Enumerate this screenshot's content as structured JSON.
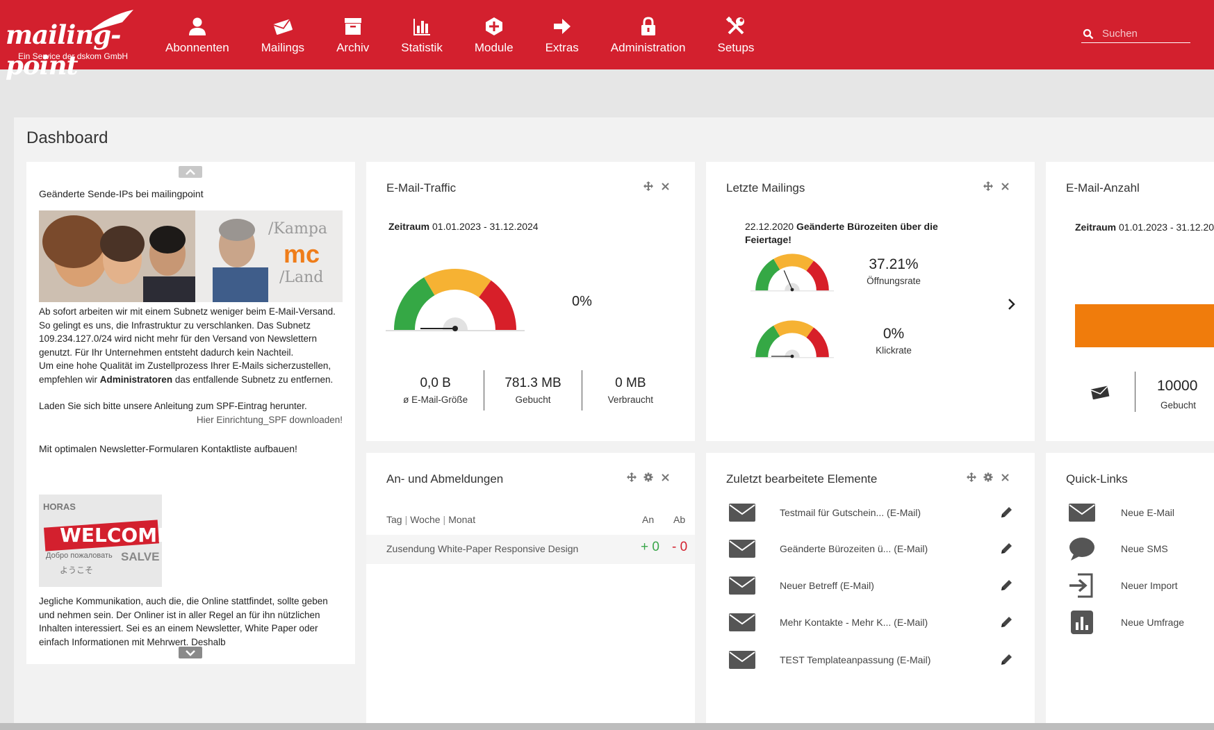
{
  "brand": {
    "logo_text": "mailing-point",
    "tagline": "Ein Service der dskom GmbH",
    "primary": "#d3202e"
  },
  "nav": [
    {
      "label": "Abonnenten",
      "icon": "user-icon"
    },
    {
      "label": "Mailings",
      "icon": "envelope-open-icon"
    },
    {
      "label": "Archiv",
      "icon": "archive-icon"
    },
    {
      "label": "Statistik",
      "icon": "bar-chart-icon"
    },
    {
      "label": "Module",
      "icon": "plus-hexagon-icon"
    },
    {
      "label": "Extras",
      "icon": "arrow-right-icon"
    },
    {
      "label": "Administration",
      "icon": "lock-icon"
    },
    {
      "label": "Setups",
      "icon": "tools-icon"
    }
  ],
  "search": {
    "placeholder": "Suchen",
    "value": ""
  },
  "page": {
    "title": "Dashboard"
  },
  "news": {
    "item1": {
      "title": "Geänderte Sende-IPs bei mailingpoint",
      "image_text": [
        "/Kampa",
        "mc",
        "/Land"
      ],
      "p1": "Ab sofort arbeiten wir mit einem Subnetz weniger beim E-Mail-Versand. So gelingt es uns, die Infrastruktur zu verschlanken. Das Subnetz 109.234.127.0/24 wird nicht mehr für den Versand von Newslettern genutzt. Für Ihr Unternehmen entsteht dadurch kein Nachteil.",
      "p2_pre": "Um eine hohe Qualität im Zustellprozess Ihrer E-Mails sicherzustellen, empfehlen wir ",
      "p2_bold": "Administratoren",
      "p2_post": " das entfallende Subnetz zu entfernen.",
      "p3": "Laden Sie sich bitte unsere Anleitung zum SPF-Eintrag herunter.",
      "download": "Hier Einrichtung_SPF downloaden!"
    },
    "item2": {
      "title": "Mit optimalen Newsletter-Formularen Kontaktliste aufbauen!",
      "image_text": [
        "WELCOME",
        "SALVE",
        "HORAS",
        "Добро пожаловать",
        "ようこそ"
      ],
      "p1": "Jegliche Kommunikation, auch die, die Online stattfindet, sollte geben und nehmen sein. Der Onliner ist in aller Regel an für ihn nützlichen Inhalten interessiert. Sei es an einem Newsletter, White Paper oder einfach Informationen mit Mehrwert. Deshalb"
    }
  },
  "traffic": {
    "title": "E-Mail-Traffic",
    "zeitraum_label": "Zeitraum",
    "zeitraum_value": "01.01.2023 - 31.12.2024",
    "gauge_percent": "0%",
    "gauge_fraction": 0,
    "stats": [
      {
        "value": "0,0 B",
        "label": "ø E-Mail-Größe"
      },
      {
        "value": "781.3 MB",
        "label": "Gebucht"
      },
      {
        "value": "0 MB",
        "label": "Verbraucht"
      }
    ]
  },
  "mailings": {
    "title": "Letzte Mailings",
    "date": "22.12.2020",
    "subject": "Geänderte Bürozeiten über die Feiertage!",
    "open_rate": "37.21%",
    "open_label": "Öffnungsrate",
    "open_fraction": 0.3721,
    "click_rate": "0%",
    "click_label": "Klickrate",
    "click_fraction": 0
  },
  "anzahl": {
    "title": "E-Mail-Anzahl",
    "zeitraum_label": "Zeitraum",
    "zeitraum_value": "01.01.2023 - 31.12.20",
    "value": "10000",
    "label": "Gebucht",
    "bar_color": "#f07c0c"
  },
  "abm": {
    "title": "An- und Abmeldungen",
    "tabs": [
      "Tag",
      "Woche",
      "Monat"
    ],
    "col_an": "An",
    "col_ab": "Ab",
    "rows": [
      {
        "name": "Zusendung White-Paper Responsive Design",
        "an": "+ 0",
        "ab": "- 0"
      }
    ]
  },
  "zuletzt": {
    "title": "Zuletzt bearbeitete Elemente",
    "items": [
      "Testmail für Gutschein... (E-Mail)",
      "Geänderte Bürozeiten ü... (E-Mail)",
      "Neuer Betreff (E-Mail)",
      "Mehr Kontakte - Mehr K... (E-Mail)",
      "TEST Templateanpassung (E-Mail)"
    ]
  },
  "quick": {
    "title": "Quick-Links",
    "items": [
      {
        "label": "Neue E-Mail",
        "icon": "envelope-icon"
      },
      {
        "label": "Neue SMS",
        "icon": "speech-bubble-icon"
      },
      {
        "label": "Neuer Import",
        "icon": "import-icon"
      },
      {
        "label": "Neue Umfrage",
        "icon": "poll-icon"
      }
    ]
  }
}
